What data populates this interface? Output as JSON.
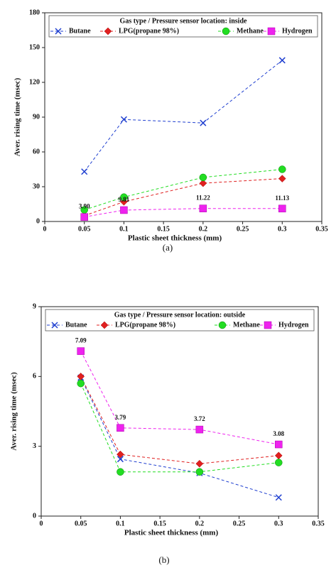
{
  "chart_data": [
    {
      "type": "line",
      "caption": "(a)",
      "legend_title": "Gas type / Pressure sensor location: inside",
      "xlabel": "Plastic sheet thickness (mm)",
      "ylabel": "Aver. rising time (msec)",
      "x": [
        0.05,
        0.1,
        0.2,
        0.3
      ],
      "xlim": [
        0,
        0.35
      ],
      "xticks": [
        0,
        0.05,
        0.1,
        0.15,
        0.2,
        0.25,
        0.3,
        0.35
      ],
      "ylim": [
        0,
        180
      ],
      "yticks": [
        0,
        30,
        60,
        90,
        120,
        150,
        180
      ],
      "series": [
        {
          "name": "Butane",
          "color": "#1f3fd0",
          "marker": "x",
          "values": [
            43,
            88,
            85,
            139
          ]
        },
        {
          "name": "LPG(propane 98%)",
          "color": "#e02020",
          "marker": "diamond",
          "values": [
            5,
            17,
            33,
            37
          ]
        },
        {
          "name": "Methane",
          "color": "#22dd22",
          "marker": "circle",
          "values": [
            10,
            21,
            38,
            45
          ]
        },
        {
          "name": "Hydrogen",
          "color": "#ee22ee",
          "marker": "square",
          "values": [
            3.9,
            9.81,
            11.22,
            11.13
          ],
          "value_labels": [
            "3.90",
            "9.81",
            "11.22",
            "11.13"
          ]
        }
      ]
    },
    {
      "type": "line",
      "caption": "(b)",
      "legend_title": "Gas type / Pressure sensor location: outside",
      "xlabel": "Plastic sheet thickness (mm)",
      "ylabel": "Aver. rising time (msec)",
      "x": [
        0.05,
        0.1,
        0.2,
        0.3
      ],
      "xlim": [
        0,
        0.35
      ],
      "xticks": [
        0,
        0.05,
        0.1,
        0.15,
        0.2,
        0.25,
        0.3,
        0.35
      ],
      "ylim": [
        0,
        9
      ],
      "yticks": [
        0,
        3,
        6,
        9
      ],
      "series": [
        {
          "name": "Butane",
          "color": "#1f3fd0",
          "marker": "x",
          "values": [
            5.95,
            2.45,
            1.85,
            0.8
          ]
        },
        {
          "name": "LPG(propane 98%)",
          "color": "#e02020",
          "marker": "diamond",
          "values": [
            6.0,
            2.65,
            2.25,
            2.6
          ]
        },
        {
          "name": "Methane",
          "color": "#22dd22",
          "marker": "circle",
          "values": [
            5.7,
            1.9,
            1.9,
            2.3
          ]
        },
        {
          "name": "Hydrogen",
          "color": "#ee22ee",
          "marker": "square",
          "values": [
            7.09,
            3.79,
            3.72,
            3.08
          ],
          "value_labels": [
            "7.09",
            "3.79",
            "3.72",
            "3.08"
          ]
        }
      ]
    }
  ]
}
